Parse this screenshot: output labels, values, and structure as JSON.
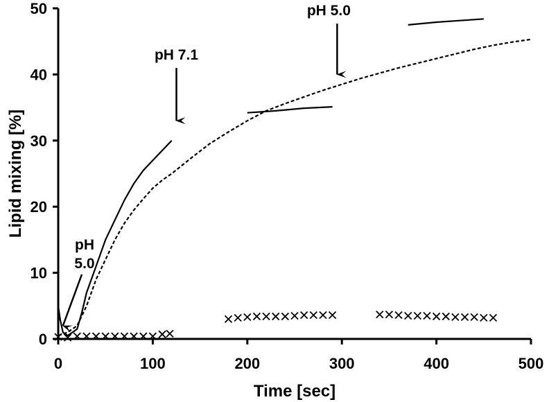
{
  "chart_data": {
    "type": "line",
    "title": "",
    "xlabel": "Time [sec]",
    "ylabel": "Lipid mixing [%]",
    "xlim": [
      0,
      500
    ],
    "ylim": [
      0,
      50
    ],
    "xticks": [
      "0",
      "100",
      "200",
      "300",
      "400",
      "500"
    ],
    "yticks": [
      "0",
      "10",
      "20",
      "30",
      "40",
      "50"
    ],
    "grid": false,
    "legend": "none",
    "series": [
      {
        "style": "solid",
        "segments": [
          [
            [
              0,
              5
            ],
            [
              2,
              3
            ],
            [
              5,
              1
            ],
            [
              10,
              0.5
            ],
            [
              15,
              1
            ],
            [
              20,
              1.5
            ],
            [
              25,
              4
            ],
            [
              30,
              7
            ],
            [
              40,
              11
            ],
            [
              50,
              15
            ],
            [
              60,
              18
            ],
            [
              70,
              21
            ],
            [
              80,
              23.5
            ],
            [
              90,
              25.5
            ],
            [
              100,
              27
            ],
            [
              110,
              28.5
            ],
            [
              120,
              30
            ]
          ],
          [
            [
              200,
              34.2
            ],
            [
              230,
              34.5
            ],
            [
              260,
              34.9
            ],
            [
              290,
              35.1
            ]
          ],
          [
            [
              370,
              47.5
            ],
            [
              400,
              47.9
            ],
            [
              430,
              48.2
            ],
            [
              450,
              48.4
            ]
          ]
        ]
      },
      {
        "style": "dashed",
        "points": [
          [
            0,
            0.5
          ],
          [
            10,
            1
          ],
          [
            20,
            2
          ],
          [
            30,
            5
          ],
          [
            40,
            9
          ],
          [
            50,
            12
          ],
          [
            60,
            15
          ],
          [
            70,
            17.5
          ],
          [
            80,
            19.5
          ],
          [
            90,
            21.2
          ],
          [
            100,
            22.8
          ],
          [
            110,
            24
          ],
          [
            120,
            25
          ],
          [
            140,
            27.3
          ],
          [
            160,
            29.5
          ],
          [
            180,
            31.3
          ],
          [
            200,
            33
          ],
          [
            220,
            34.5
          ],
          [
            240,
            35.6
          ],
          [
            260,
            36.6
          ],
          [
            280,
            37.6
          ],
          [
            300,
            38.5
          ],
          [
            320,
            39.4
          ],
          [
            340,
            40.2
          ],
          [
            360,
            41
          ],
          [
            380,
            41.7
          ],
          [
            400,
            42.4
          ],
          [
            420,
            43.1
          ],
          [
            440,
            43.8
          ],
          [
            460,
            44.4
          ],
          [
            480,
            44.9
          ],
          [
            500,
            45.3
          ]
        ]
      },
      {
        "style": "x-markers",
        "points": [
          [
            0,
            0.3
          ],
          [
            10,
            0.2
          ],
          [
            20,
            0.4
          ],
          [
            30,
            0.4
          ],
          [
            40,
            0.4
          ],
          [
            50,
            0.4
          ],
          [
            60,
            0.4
          ],
          [
            70,
            0.4
          ],
          [
            80,
            0.4
          ],
          [
            90,
            0.4
          ],
          [
            100,
            0.4
          ],
          [
            110,
            0.7
          ],
          [
            118,
            0.8
          ],
          [
            180,
            3
          ],
          [
            190,
            3.2
          ],
          [
            200,
            3.3
          ],
          [
            210,
            3.4
          ],
          [
            220,
            3.4
          ],
          [
            230,
            3.4
          ],
          [
            240,
            3.4
          ],
          [
            250,
            3.5
          ],
          [
            260,
            3.6
          ],
          [
            270,
            3.6
          ],
          [
            280,
            3.6
          ],
          [
            290,
            3.6
          ],
          [
            340,
            3.7
          ],
          [
            350,
            3.7
          ],
          [
            360,
            3.6
          ],
          [
            370,
            3.5
          ],
          [
            380,
            3.5
          ],
          [
            390,
            3.5
          ],
          [
            400,
            3.4
          ],
          [
            410,
            3.4
          ],
          [
            420,
            3.3
          ],
          [
            430,
            3.3
          ],
          [
            440,
            3.3
          ],
          [
            450,
            3.2
          ],
          [
            460,
            3.2
          ]
        ]
      }
    ],
    "annotations": [
      {
        "text": "pH 7.1",
        "arrow_tip": [
          125,
          33
        ]
      },
      {
        "text": "pH 5.0",
        "arrow_tip": [
          295,
          40
        ]
      },
      {
        "text": "pH",
        "text2": "5.0",
        "arrow_tip": [
          5,
          2
        ]
      }
    ]
  }
}
